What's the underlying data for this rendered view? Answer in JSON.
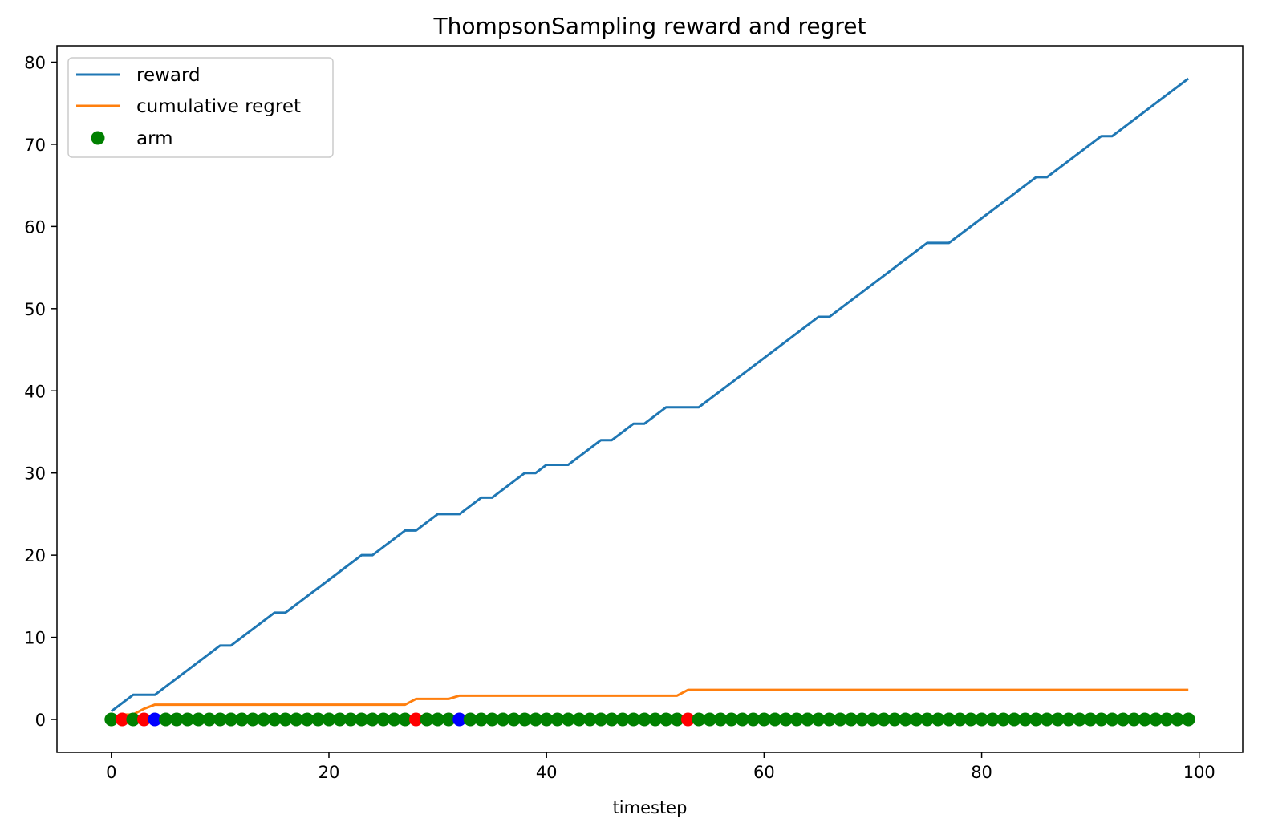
{
  "chart_data": {
    "type": "line",
    "title": "ThompsonSampling reward and regret",
    "xlabel": "timestep",
    "ylabel": "",
    "xlim": [
      -5,
      104
    ],
    "ylim": [
      -4,
      82
    ],
    "xticks": [
      0,
      20,
      40,
      60,
      80,
      100
    ],
    "yticks": [
      0,
      10,
      20,
      30,
      40,
      50,
      60,
      70,
      80
    ],
    "grid": false,
    "legend_position": "upper left",
    "colors": {
      "reward": "#1f77b4",
      "regret": "#ff7f0e",
      "arm_green": "#008000",
      "arm_red": "#ff0000",
      "arm_blue": "#0000ff"
    },
    "series": [
      {
        "name": "reward",
        "kind": "line",
        "x": [
          0,
          1,
          2,
          3,
          4,
          5,
          6,
          7,
          8,
          9,
          10,
          11,
          12,
          13,
          14,
          15,
          16,
          17,
          18,
          19,
          20,
          21,
          22,
          23,
          24,
          25,
          26,
          27,
          28,
          29,
          30,
          31,
          32,
          33,
          34,
          35,
          36,
          37,
          38,
          39,
          40,
          41,
          42,
          43,
          44,
          45,
          46,
          47,
          48,
          49,
          50,
          51,
          52,
          53,
          54,
          55,
          56,
          57,
          58,
          59,
          60,
          61,
          62,
          63,
          64,
          65,
          66,
          67,
          68,
          69,
          70,
          71,
          72,
          73,
          74,
          75,
          76,
          77,
          78,
          79,
          80,
          81,
          82,
          83,
          84,
          85,
          86,
          87,
          88,
          89,
          90,
          91,
          92,
          93,
          94,
          95,
          96,
          97,
          98,
          99
        ],
        "y": [
          1,
          2,
          3,
          3,
          3,
          4,
          5,
          6,
          7,
          8,
          9,
          9,
          10,
          11,
          12,
          13,
          13,
          14,
          15,
          16,
          17,
          18,
          19,
          20,
          20,
          21,
          22,
          23,
          23,
          24,
          25,
          25,
          25,
          26,
          27,
          27,
          28,
          29,
          30,
          30,
          31,
          31,
          31,
          32,
          33,
          34,
          34,
          35,
          36,
          36,
          37,
          38,
          38,
          38,
          38,
          39,
          40,
          41,
          42,
          43,
          44,
          45,
          46,
          47,
          48,
          49,
          49,
          50,
          51,
          52,
          53,
          54,
          55,
          56,
          57,
          58,
          58,
          58,
          59,
          60,
          61,
          62,
          63,
          64,
          65,
          66,
          66,
          67,
          68,
          69,
          70,
          71,
          71,
          72,
          73,
          74,
          75,
          76,
          77,
          78
        ]
      },
      {
        "name": "cumulative regret",
        "kind": "line",
        "x": [
          0,
          1,
          2,
          3,
          4,
          5,
          6,
          7,
          8,
          9,
          10,
          11,
          12,
          13,
          14,
          15,
          16,
          17,
          18,
          19,
          20,
          21,
          22,
          23,
          24,
          25,
          26,
          27,
          28,
          29,
          30,
          31,
          32,
          33,
          34,
          35,
          36,
          37,
          38,
          39,
          40,
          41,
          42,
          43,
          44,
          45,
          46,
          47,
          48,
          49,
          50,
          51,
          52,
          53,
          54,
          55,
          56,
          57,
          58,
          59,
          60,
          61,
          62,
          63,
          64,
          65,
          66,
          67,
          68,
          69,
          70,
          71,
          72,
          73,
          74,
          75,
          76,
          77,
          78,
          79,
          80,
          81,
          82,
          83,
          84,
          85,
          86,
          87,
          88,
          89,
          90,
          91,
          92,
          93,
          94,
          95,
          96,
          97,
          98,
          99
        ],
        "y": [
          0,
          0.6,
          0.6,
          1.3,
          1.8,
          1.8,
          1.8,
          1.8,
          1.8,
          1.8,
          1.8,
          1.8,
          1.8,
          1.8,
          1.8,
          1.8,
          1.8,
          1.8,
          1.8,
          1.8,
          1.8,
          1.8,
          1.8,
          1.8,
          1.8,
          1.8,
          1.8,
          1.8,
          2.5,
          2.5,
          2.5,
          2.5,
          2.9,
          2.9,
          2.9,
          2.9,
          2.9,
          2.9,
          2.9,
          2.9,
          2.9,
          2.9,
          2.9,
          2.9,
          2.9,
          2.9,
          2.9,
          2.9,
          2.9,
          2.9,
          2.9,
          2.9,
          2.9,
          3.6,
          3.6,
          3.6,
          3.6,
          3.6,
          3.6,
          3.6,
          3.6,
          3.6,
          3.6,
          3.6,
          3.6,
          3.6,
          3.6,
          3.6,
          3.6,
          3.6,
          3.6,
          3.6,
          3.6,
          3.6,
          3.6,
          3.6,
          3.6,
          3.6,
          3.6,
          3.6,
          3.6,
          3.6,
          3.6,
          3.6,
          3.6,
          3.6,
          3.6,
          3.6,
          3.6,
          3.6,
          3.6,
          3.6,
          3.6,
          3.6,
          3.6,
          3.6,
          3.6,
          3.6,
          3.6,
          3.6
        ]
      },
      {
        "name": "arm",
        "kind": "scatter",
        "y_value": 0,
        "x": [
          0,
          1,
          2,
          3,
          4,
          5,
          6,
          7,
          8,
          9,
          10,
          11,
          12,
          13,
          14,
          15,
          16,
          17,
          18,
          19,
          20,
          21,
          22,
          23,
          24,
          25,
          26,
          27,
          28,
          29,
          30,
          31,
          32,
          33,
          34,
          35,
          36,
          37,
          38,
          39,
          40,
          41,
          42,
          43,
          44,
          45,
          46,
          47,
          48,
          49,
          50,
          51,
          52,
          53,
          54,
          55,
          56,
          57,
          58,
          59,
          60,
          61,
          62,
          63,
          64,
          65,
          66,
          67,
          68,
          69,
          70,
          71,
          72,
          73,
          74,
          75,
          76,
          77,
          78,
          79,
          80,
          81,
          82,
          83,
          84,
          85,
          86,
          87,
          88,
          89,
          90,
          91,
          92,
          93,
          94,
          95,
          96,
          97,
          98,
          99
        ],
        "special_points": {
          "1": "red",
          "3": "red",
          "4": "blue",
          "28": "red",
          "32": "blue",
          "53": "red"
        },
        "default_color": "green"
      }
    ]
  }
}
